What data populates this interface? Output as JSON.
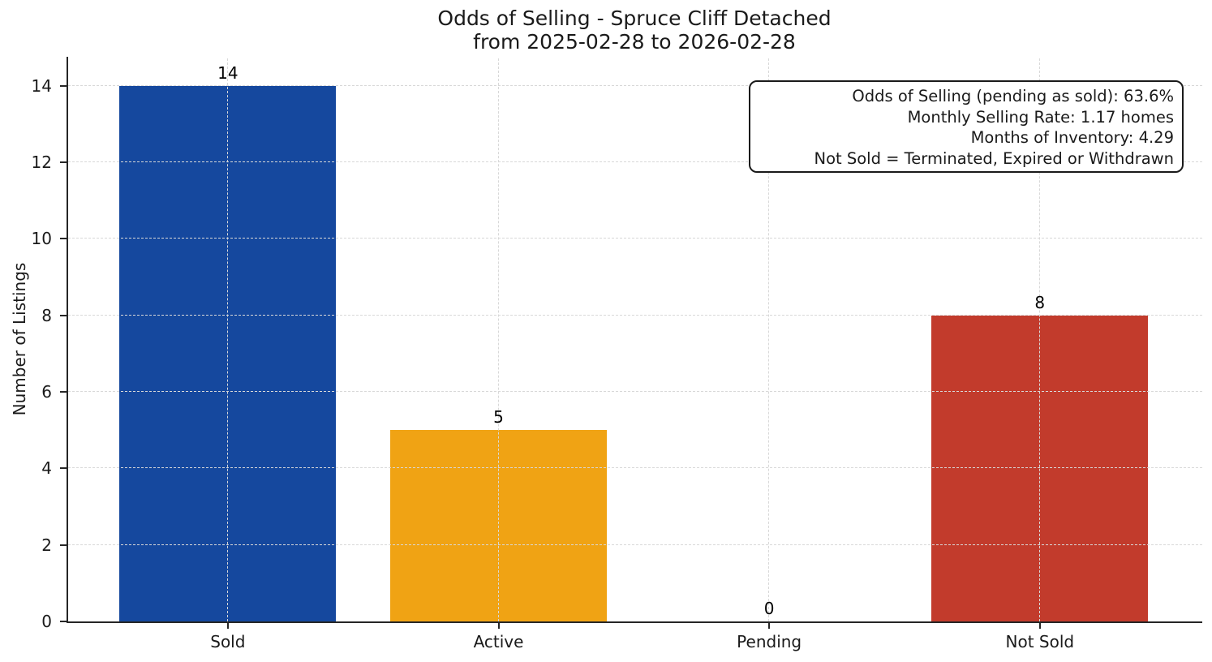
{
  "header": {
    "title": "Odds of Selling - Spruce Cliff Detached",
    "subtitle": "from 2025-02-28 to 2026-02-28"
  },
  "chart_data": {
    "type": "bar",
    "title": "Odds of Selling - Spruce Cliff Detached\nfrom 2025-02-28 to 2026-02-28",
    "categories": [
      "Sold",
      "Active",
      "Pending",
      "Not Sold"
    ],
    "values": [
      14,
      5,
      0,
      8
    ],
    "bar_colors": [
      "#15489e",
      "#f0a314",
      "#808080",
      "#c23b2c"
    ],
    "xlabel": "",
    "ylabel": "Number of Listings",
    "yticks": [
      0,
      2,
      4,
      6,
      8,
      10,
      12,
      14
    ],
    "ylim": [
      0,
      14.76
    ],
    "xlim": [
      -0.59,
      3.6
    ],
    "bar_width": 0.8,
    "grid": "both, dashed, drawn above bars",
    "gridline_color": "#d8d8d8",
    "spine_color": "#262626",
    "legend": "none",
    "annotation": {
      "lines": [
        "Odds of Selling (pending as sold): 63.6%",
        "Monthly Selling Rate: 1.17 homes",
        "Months of Inventory: 4.29",
        "Not Sold = Terminated, Expired or Withdrawn"
      ]
    }
  }
}
